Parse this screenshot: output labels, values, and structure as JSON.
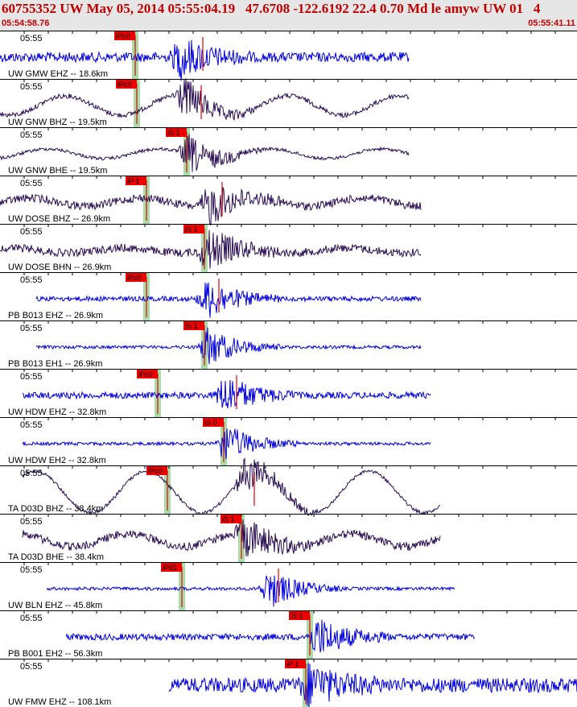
{
  "header": {
    "title": "60755352 UW May 05, 2014 05:55:04.19   47.6708 -122.6192 22.4 0.70 Md le amyw UW 01   4",
    "start_time": "05:54:58.76",
    "end_time": "05:55:41.11"
  },
  "colors": {
    "header_text": "#c00000",
    "header_bg": "#e6e6e6",
    "trace_blue": "#0000dd",
    "trace_purple": "#2a0e55",
    "pick_red": "#ee0000",
    "green_band": "#a8dca8"
  },
  "traces": [
    {
      "label": "UW GMW EHZ -- 18.6km",
      "time": "05:55",
      "color": "trace_blue",
      "amp": 6,
      "osc": 0,
      "start": 0,
      "end": 508,
      "burst": 225,
      "pick": "iPc0",
      "pickx": 168,
      "sx": 238
    },
    {
      "label": "UW GNW BHZ -- 19.5km",
      "time": "05:55",
      "color": "trace_purple",
      "amp": 3,
      "osc": 12,
      "start": 0,
      "end": 508,
      "burst": 228,
      "pick": "iPc0",
      "pickx": 170,
      "sx": 236
    },
    {
      "label": "UW GNW BHE -- 19.5km",
      "time": "05:55",
      "color": "trace_purple",
      "amp": 2,
      "osc": 6,
      "start": 0,
      "end": 508,
      "burst": 235,
      "pick": "iS 1",
      "pickx": 232,
      "sx": 232
    },
    {
      "label": "UW DOSE BHZ -- 26.9km",
      "time": "05:55",
      "color": "trace_purple",
      "amp": 5,
      "osc": 5,
      "start": 0,
      "end": 523,
      "burst": 260,
      "pick": "iP 1",
      "pickx": 182,
      "sx": 262
    },
    {
      "label": "UW DOSE BHN -- 26.9km",
      "time": "05:55",
      "color": "trace_purple",
      "amp": 5,
      "osc": 3,
      "start": 0,
      "end": 523,
      "burst": 258,
      "pick": "iS 1",
      "pickx": 254,
      "sx": 254
    },
    {
      "label": "PB B013 EHZ -- 26.9km",
      "time": "05:55",
      "color": "trace_blue",
      "amp": 3,
      "osc": 0,
      "start": 45,
      "end": 523,
      "burst": 258,
      "pick": "iPc0",
      "pickx": 182,
      "sx": 258
    },
    {
      "label": "PB B013 EH1 -- 26.9km",
      "time": "05:55",
      "color": "trace_blue",
      "amp": 2,
      "osc": 0,
      "start": 45,
      "end": 523,
      "burst": 258,
      "pick": "iS 1",
      "pickx": 254,
      "sx": 254
    },
    {
      "label": "UW HDW EHZ -- 32.8km",
      "time": "05:55",
      "color": "trace_blue",
      "amp": 4,
      "osc": 0,
      "start": 28,
      "end": 535,
      "burst": 280,
      "pick": "iPc0",
      "pickx": 196,
      "sx": 280
    },
    {
      "label": "UW HDW EH2 -- 32.8km",
      "time": "05:55",
      "color": "trace_blue",
      "amp": 2,
      "osc": 0,
      "start": 28,
      "end": 535,
      "burst": 280,
      "pick": "iS 0",
      "pickx": 278,
      "sx": 278
    },
    {
      "label": "TA D03D BHZ -- 38.4km",
      "time": "05:55",
      "color": "trace_purple",
      "amp": 2,
      "osc": 26,
      "start": 28,
      "end": 547,
      "burst": 305,
      "pick": "iPc0",
      "pickx": 208,
      "sx": 302
    },
    {
      "label": "TA D03D BHE -- 38.4km",
      "time": "05:55",
      "color": "trace_purple",
      "amp": 5,
      "osc": 8,
      "start": 28,
      "end": 547,
      "burst": 305,
      "pick": "iS 1",
      "pickx": 300,
      "sx": 300
    },
    {
      "label": "UW BLN EHZ -- 45.8km",
      "time": "05:55",
      "color": "trace_blue",
      "amp": 2,
      "osc": 0,
      "start": 58,
      "end": 565,
      "burst": 335,
      "pick": "iPd1",
      "pickx": 226,
      "sx": 332
    },
    {
      "label": "PB B001 EH2 -- 56.3km",
      "time": "05:55",
      "color": "trace_blue",
      "amp": 4,
      "osc": 0,
      "start": 82,
      "end": 590,
      "burst": 395,
      "pick": "iS 1",
      "pickx": 385,
      "sx": 385
    },
    {
      "label": "UW FMW EHZ -- 108.1km",
      "time": "05:55",
      "color": "trace_blue",
      "amp": 9,
      "osc": 0,
      "start": 210,
      "end": 717,
      "burst": 385,
      "pick": "iP 1",
      "pickx": 380,
      "sx": 380
    }
  ]
}
